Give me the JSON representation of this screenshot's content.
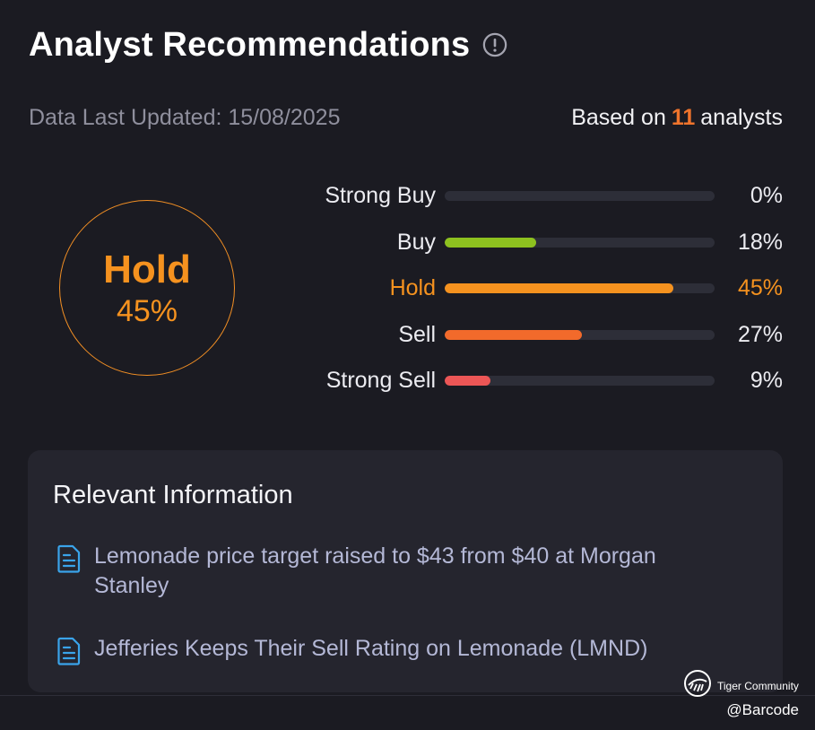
{
  "header": {
    "title": "Analyst Recommendations",
    "info_icon": "info-circle-icon"
  },
  "meta": {
    "updated": "Data Last Updated: 15/08/2025",
    "based_prefix": "Based on",
    "analyst_count": "11",
    "based_suffix": "analysts"
  },
  "consensus": {
    "label": "Hold",
    "percent": "45%"
  },
  "ratings": [
    {
      "label": "Strong Buy",
      "percent": "0%",
      "value": 0,
      "color": "#8dc11f"
    },
    {
      "label": "Buy",
      "percent": "18%",
      "value": 18,
      "color": "#8dc11f"
    },
    {
      "label": "Hold",
      "percent": "45%",
      "value": 45,
      "color": "#f5921f"
    },
    {
      "label": "Sell",
      "percent": "27%",
      "value": 27,
      "color": "#f26a2b"
    },
    {
      "label": "Strong Sell",
      "percent": "9%",
      "value": 9,
      "color": "#ec5656"
    }
  ],
  "relevant": {
    "title": "Relevant Information",
    "items": [
      {
        "icon": "document-icon",
        "text": "Lemonade price target raised to $43 from $40 at Morgan Stanley"
      },
      {
        "icon": "document-icon",
        "text": "Jefferies Keeps Their Sell Rating on Lemonade (LMND)"
      }
    ]
  },
  "watermark": {
    "logo": "tiger-logo-icon",
    "text": "Tiger Community",
    "handle": "@Barcode"
  },
  "colors": {
    "accent": "#f5921f",
    "count": "#f0742c",
    "background": "#1b1b22",
    "panel": "#25252e"
  }
}
